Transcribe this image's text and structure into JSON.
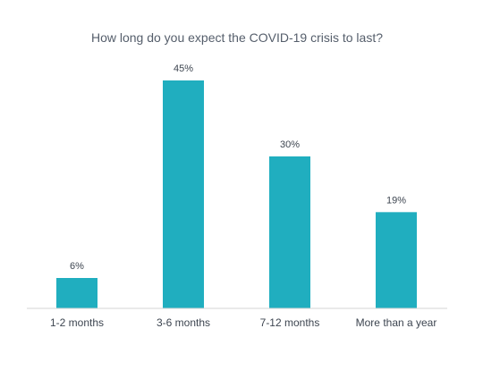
{
  "chart_data": {
    "type": "bar",
    "title": "How long do you expect the COVID-19 crisis to last?",
    "xlabel": "",
    "ylabel": "",
    "categories": [
      "1-2 months",
      "3-6 months",
      "7-12 months",
      "More than a year"
    ],
    "values": [
      6,
      45,
      30,
      19
    ],
    "value_labels": [
      "6%",
      "45%",
      "30%",
      "19%"
    ],
    "ylim": [
      0,
      45
    ],
    "grid": false,
    "legend": "none",
    "colors": {
      "bar": "#20aebf",
      "axis": "#d6d6d6",
      "text": "#3d4550",
      "title": "#555e6b"
    }
  }
}
